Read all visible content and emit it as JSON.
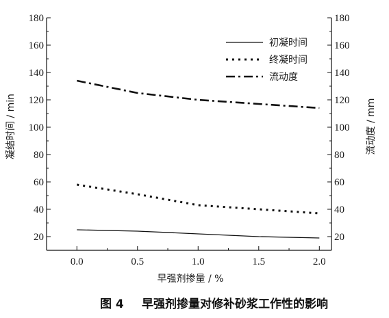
{
  "chart_data": {
    "type": "line",
    "x": [
      0.0,
      0.5,
      1.0,
      1.5,
      2.0
    ],
    "xlim": [
      -0.25,
      2.1
    ],
    "xticks": [
      0.0,
      0.5,
      1.0,
      1.5,
      2.0
    ],
    "xtick_labels": [
      "0.0",
      "0.5",
      "1.0",
      "1.5",
      "2.0"
    ],
    "ylim_left": [
      10,
      180
    ],
    "ylim_right": [
      10,
      180
    ],
    "yticks": [
      20,
      40,
      60,
      80,
      100,
      120,
      140,
      160,
      180
    ],
    "ytick_labels": [
      "20",
      "40",
      "60",
      "80",
      "100",
      "120",
      "140",
      "160",
      "180"
    ],
    "xlabel": "早强剂掺量 / %",
    "ylabel_left": "凝结时间 / min",
    "ylabel_right": "流动度 / mm",
    "series": [
      {
        "name": "初凝时间",
        "axis": "left",
        "style": "solid",
        "values": [
          25,
          24,
          22,
          20,
          19
        ]
      },
      {
        "name": "终凝时间",
        "axis": "left",
        "style": "dotted",
        "values": [
          58,
          51,
          43,
          40,
          37
        ]
      },
      {
        "name": "流动度",
        "axis": "right",
        "style": "dashdot",
        "values": [
          134,
          125,
          120,
          117,
          114
        ]
      }
    ],
    "legend_position": "top-right",
    "grid": false,
    "caption_label": "图 4",
    "caption_text": "早强剂掺量对修补砂浆工作性的影响"
  }
}
